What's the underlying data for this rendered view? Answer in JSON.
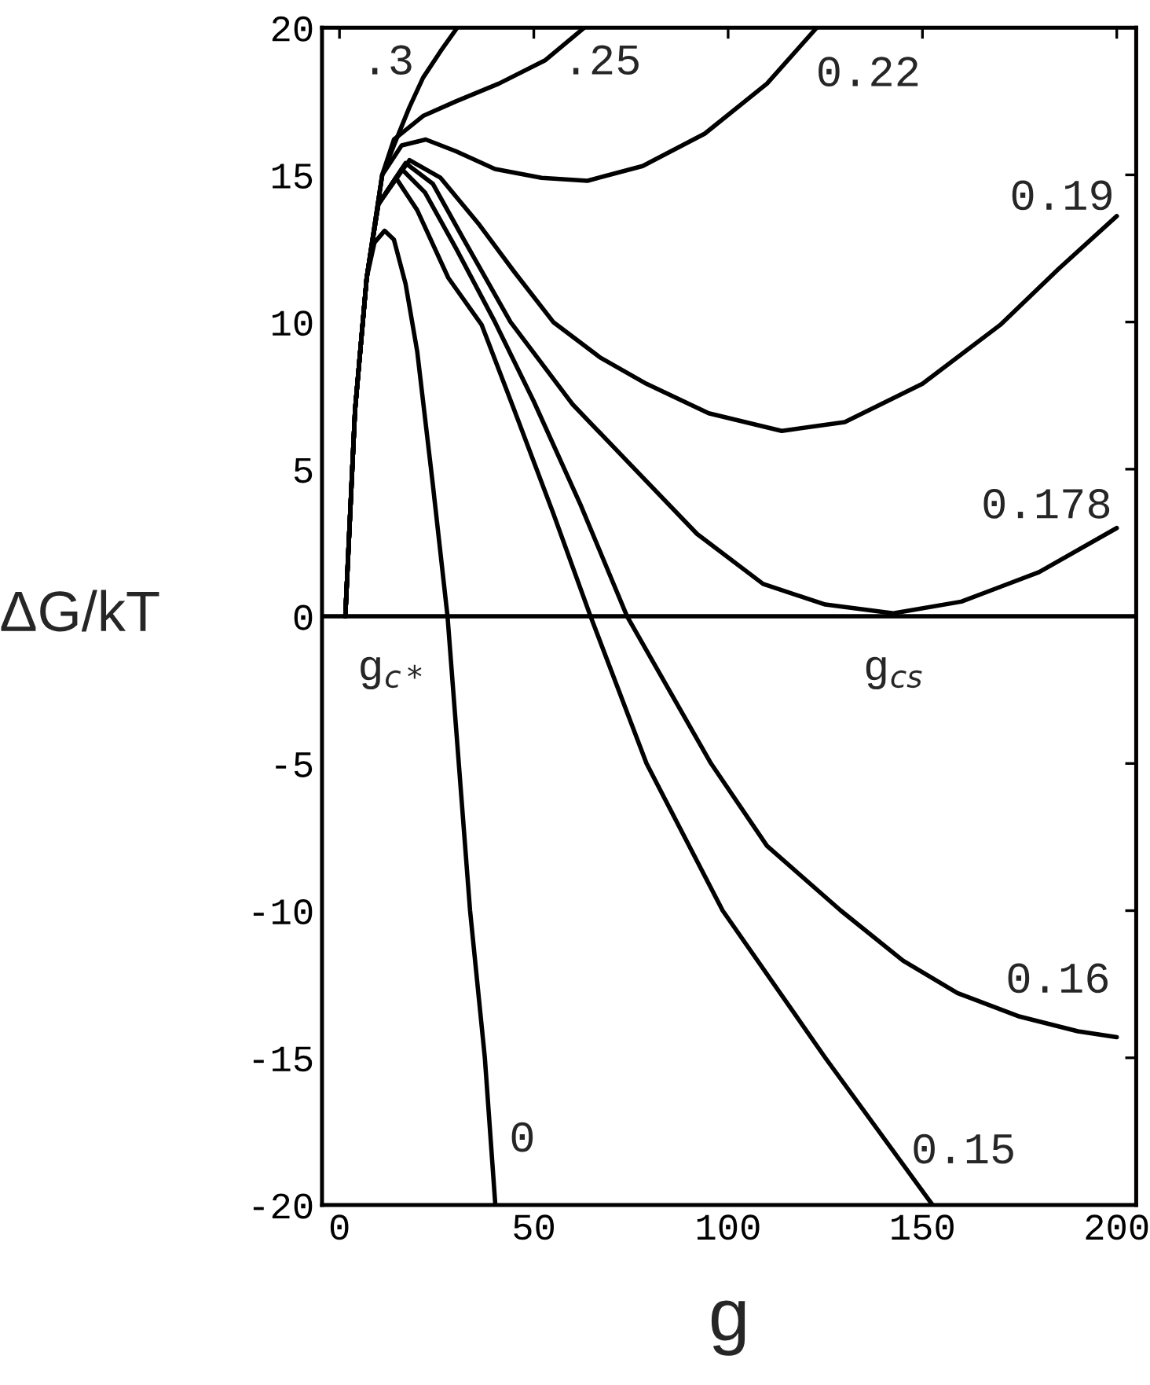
{
  "chart_data": {
    "type": "line",
    "xlabel": "g",
    "ylabel": "ΔG/kT",
    "xlim": [
      -4.5,
      205
    ],
    "ylim": [
      -20,
      20
    ],
    "xticks": [
      0,
      50,
      100,
      150,
      200
    ],
    "yticks": [
      -20,
      -15,
      -10,
      -5,
      0,
      5,
      10,
      15,
      20
    ],
    "grid": false,
    "legend": false,
    "marker": "none",
    "line_style": "solid",
    "series": [
      {
        "color": "#000000",
        "x": [
          1.5,
          4,
          7,
          9,
          11.6,
          14,
          17,
          20,
          24,
          27.8,
          33.6,
          37.4,
          40.1
        ],
        "values": [
          0,
          7,
          11.5,
          12.7,
          13.1,
          12.8,
          11.3,
          9,
          4.5,
          0,
          -10,
          -15,
          -20
        ]
      },
      {
        "color": "#000000",
        "x": [
          1.5,
          4,
          7,
          10,
          14.5,
          20,
          28,
          36.6,
          45,
          55,
          64.6,
          79,
          98.6,
          125,
          152.6
        ],
        "values": [
          0,
          7,
          11.5,
          14,
          14.9,
          13.8,
          11.5,
          9.9,
          7,
          3.5,
          0,
          -5,
          -10,
          -15,
          -20
        ]
      },
      {
        "color": "#000000",
        "x": [
          1.5,
          4,
          7,
          10,
          16,
          22,
          30,
          40,
          50,
          62,
          74,
          95.6,
          110,
          129,
          145,
          159,
          175,
          190,
          200
        ],
        "values": [
          0,
          7,
          11.5,
          14,
          15.2,
          14.4,
          12.5,
          10,
          7.3,
          3.8,
          0,
          -5,
          -7.8,
          -10,
          -11.7,
          -12.8,
          -13.6,
          -14.1,
          -14.3
        ]
      },
      {
        "color": "#000000",
        "x": [
          1.5,
          4,
          7,
          10,
          17,
          24,
          32,
          44,
          60,
          76,
          92,
          109,
          125,
          142.5,
          160,
          180,
          200
        ],
        "values": [
          0,
          7,
          11.5,
          14,
          15.4,
          14.7,
          12.8,
          10,
          7.2,
          5,
          2.8,
          1.1,
          0.4,
          0.1,
          0.5,
          1.5,
          3.0
        ]
      },
      {
        "color": "#000000",
        "x": [
          1.5,
          4,
          7,
          10,
          18,
          26,
          36,
          45,
          55,
          67,
          79,
          95,
          113.8,
          130,
          150,
          170,
          185,
          200
        ],
        "values": [
          0,
          7,
          11.5,
          14,
          15.5,
          14.9,
          13.3,
          11.7,
          10,
          8.8,
          7.9,
          6.9,
          6.3,
          6.6,
          7.9,
          9.9,
          11.8,
          13.6
        ]
      },
      {
        "color": "#000000",
        "x": [
          1.5,
          4,
          7,
          11,
          16,
          22.2,
          30,
          40,
          52,
          63.8,
          78,
          94,
          110,
          122.8
        ],
        "values": [
          0,
          7,
          11.5,
          15,
          16,
          16.2,
          15.8,
          15.2,
          14.9,
          14.8,
          15.3,
          16.4,
          18.1,
          20
        ]
      },
      {
        "color": "#000000",
        "x": [
          1.5,
          4,
          7,
          11,
          14,
          21.5,
          30,
          41,
          53,
          63
        ],
        "values": [
          0,
          7,
          11.5,
          15,
          16.2,
          17,
          17.5,
          18.1,
          18.9,
          20
        ]
      },
      {
        "color": "#000000",
        "x": [
          1.5,
          4,
          7,
          11,
          14,
          18,
          21.5,
          26,
          30.3
        ],
        "values": [
          0,
          7,
          11.5,
          15,
          16,
          17.3,
          18.3,
          19.2,
          20
        ]
      }
    ],
    "ref_lines": [
      {
        "axis": "y",
        "value": 0,
        "color": "#000000"
      }
    ],
    "annotations": [
      "0",
      "0.15",
      "0.16",
      "0.178",
      "0.19",
      "0.22",
      ".25",
      ".3",
      "g$_{c*}$",
      "g$_{cs}$"
    ]
  }
}
